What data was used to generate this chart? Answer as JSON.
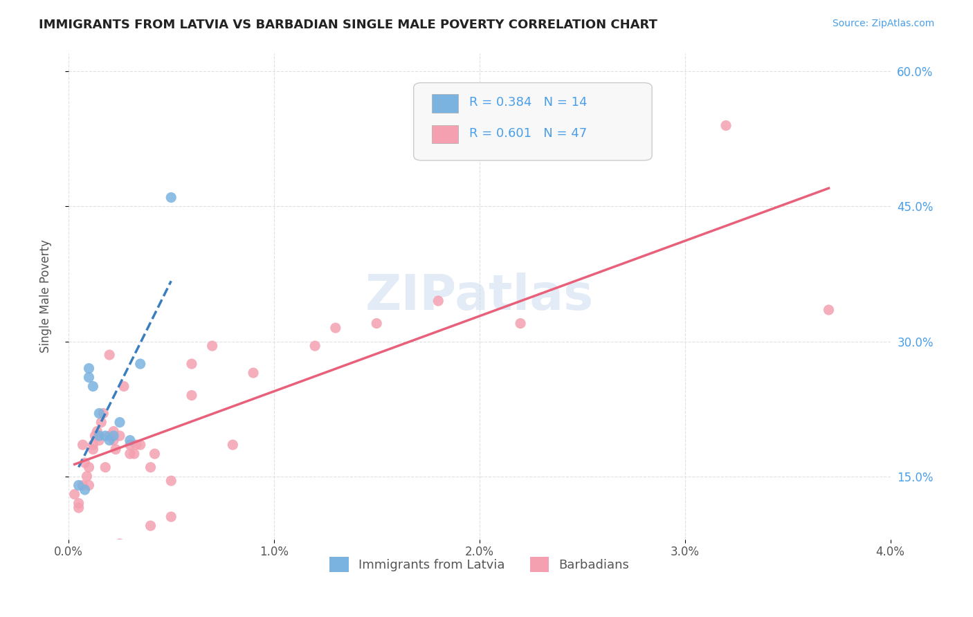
{
  "title": "IMMIGRANTS FROM LATVIA VS BARBADIAN SINGLE MALE POVERTY CORRELATION CHART",
  "source": "Source: ZipAtlas.com",
  "xlabel": "",
  "ylabel": "Single Male Poverty",
  "xlim": [
    0.0,
    0.04
  ],
  "ylim": [
    0.08,
    0.62
  ],
  "xticks": [
    0.0,
    0.01,
    0.02,
    0.03,
    0.04
  ],
  "xtick_labels": [
    "0.0%",
    "1.0%",
    "2.0%",
    "3.0%",
    "4.0%"
  ],
  "ytick_vals": [
    0.15,
    0.3,
    0.45,
    0.6
  ],
  "ytick_right_labels": [
    "15.0%",
    "30.0%",
    "45.0%",
    "60.0%"
  ],
  "R_latvia": 0.384,
  "N_latvia": 14,
  "R_barbadian": 0.601,
  "N_barbadian": 47,
  "latvia_color": "#7ab3e0",
  "barbadian_color": "#f4a0b0",
  "latvia_line_color": "#3a7ebf",
  "barbadian_line_color": "#e8607a",
  "watermark": "ZIPatlas",
  "legend_entries": [
    "Immigrants from Latvia",
    "Barbadians"
  ],
  "latvia_scatter_x": [
    0.0005,
    0.0008,
    0.001,
    0.001,
    0.0012,
    0.0015,
    0.0015,
    0.0018,
    0.002,
    0.0022,
    0.0025,
    0.003,
    0.0035,
    0.005
  ],
  "latvia_scatter_y": [
    0.14,
    0.135,
    0.27,
    0.26,
    0.25,
    0.22,
    0.195,
    0.195,
    0.19,
    0.195,
    0.21,
    0.19,
    0.275,
    0.46
  ],
  "barbadian_scatter_x": [
    0.0003,
    0.0005,
    0.0005,
    0.0007,
    0.0007,
    0.0008,
    0.0009,
    0.001,
    0.001,
    0.0012,
    0.0012,
    0.0013,
    0.0014,
    0.0015,
    0.0016,
    0.0017,
    0.0018,
    0.002,
    0.002,
    0.0022,
    0.0022,
    0.0023,
    0.0025,
    0.0025,
    0.0027,
    0.003,
    0.003,
    0.0032,
    0.0033,
    0.0035,
    0.004,
    0.004,
    0.0042,
    0.005,
    0.005,
    0.006,
    0.006,
    0.007,
    0.008,
    0.009,
    0.012,
    0.013,
    0.015,
    0.018,
    0.022,
    0.032,
    0.037
  ],
  "barbadian_scatter_y": [
    0.13,
    0.115,
    0.12,
    0.14,
    0.185,
    0.165,
    0.15,
    0.14,
    0.16,
    0.18,
    0.185,
    0.195,
    0.2,
    0.19,
    0.21,
    0.22,
    0.16,
    0.195,
    0.285,
    0.2,
    0.19,
    0.18,
    0.075,
    0.195,
    0.25,
    0.185,
    0.175,
    0.175,
    0.185,
    0.185,
    0.16,
    0.095,
    0.175,
    0.105,
    0.145,
    0.275,
    0.24,
    0.295,
    0.185,
    0.265,
    0.295,
    0.315,
    0.32,
    0.345,
    0.32,
    0.54,
    0.335
  ],
  "background_color": "#ffffff",
  "grid_color": "#e0e0e0"
}
